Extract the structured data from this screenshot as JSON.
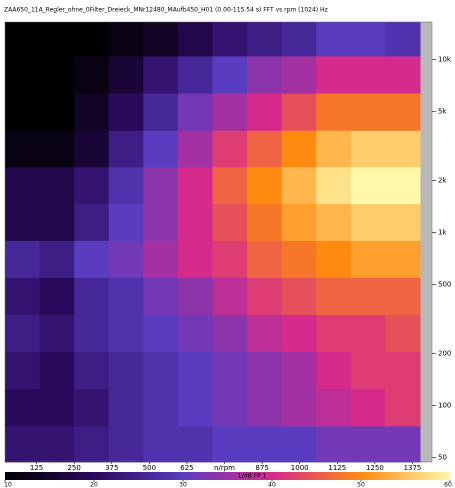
{
  "chart_data": {
    "type": "heatmap",
    "title": "ZAA650_11A_Regler_ohne_0Filter_Dreieck_MNr12480_MAufb450_H01 (0.00-115.54 s) FFT vs rpm (1024) Hz",
    "x_bins": [
      20,
      135,
      250,
      365,
      480,
      595,
      710,
      825,
      940,
      1055,
      1170,
      1285,
      1400
    ],
    "y_bins": [
      47,
      76,
      125,
      205,
      335,
      550,
      900,
      1470,
      2400,
      3900,
      6400,
      10500,
      16500
    ],
    "z": [
      [
        22,
        22,
        24,
        26,
        28,
        28,
        30,
        30,
        30,
        32,
        32,
        32
      ],
      [
        20,
        20,
        22,
        26,
        28,
        30,
        32,
        34,
        36,
        38,
        40,
        42
      ],
      [
        22,
        20,
        24,
        26,
        28,
        30,
        32,
        34,
        36,
        40,
        42,
        42
      ],
      [
        24,
        22,
        26,
        28,
        30,
        32,
        34,
        38,
        40,
        42,
        42,
        44
      ],
      [
        22,
        20,
        26,
        28,
        32,
        34,
        38,
        42,
        44,
        46,
        46,
        46
      ],
      [
        26,
        24,
        30,
        32,
        36,
        40,
        42,
        46,
        48,
        50,
        52,
        52
      ],
      [
        18,
        18,
        24,
        30,
        34,
        40,
        44,
        48,
        52,
        54,
        56,
        56
      ],
      [
        18,
        18,
        22,
        28,
        34,
        40,
        46,
        50,
        54,
        58,
        60,
        60
      ],
      [
        12,
        12,
        16,
        24,
        30,
        36,
        42,
        46,
        50,
        54,
        56,
        56
      ],
      [
        10,
        10,
        14,
        20,
        26,
        32,
        36,
        40,
        44,
        48,
        48,
        48
      ],
      [
        10,
        10,
        12,
        16,
        22,
        26,
        30,
        34,
        36,
        40,
        40,
        40
      ],
      [
        10,
        10,
        10,
        12,
        14,
        18,
        22,
        24,
        26,
        30,
        30,
        28
      ]
    ],
    "xlim": [
      20,
      1400
    ],
    "xticks": [
      125,
      250,
      375,
      500,
      625,
      {
        "value": 750,
        "label": "n/rpm"
      },
      875,
      1000,
      1125,
      1250,
      1375
    ],
    "ylim": [
      47,
      16500
    ],
    "ylog": true,
    "yticks": [
      {
        "value": 10000,
        "label": "10k"
      },
      {
        "value": 5000,
        "label": "5k"
      },
      {
        "value": 2000,
        "label": "2k"
      },
      {
        "value": 1000,
        "label": "1k"
      },
      500,
      200,
      100,
      50
    ],
    "clim": [
      10,
      60
    ],
    "cticks": [
      10,
      20,
      30,
      40,
      50,
      60
    ],
    "colorbar_label": "L/dB FP 1",
    "colormap": [
      "#000000",
      "#2a0a5c",
      "#5a3cc0",
      "#d62a8c",
      "#ff8a10",
      "#fff8a8"
    ]
  }
}
